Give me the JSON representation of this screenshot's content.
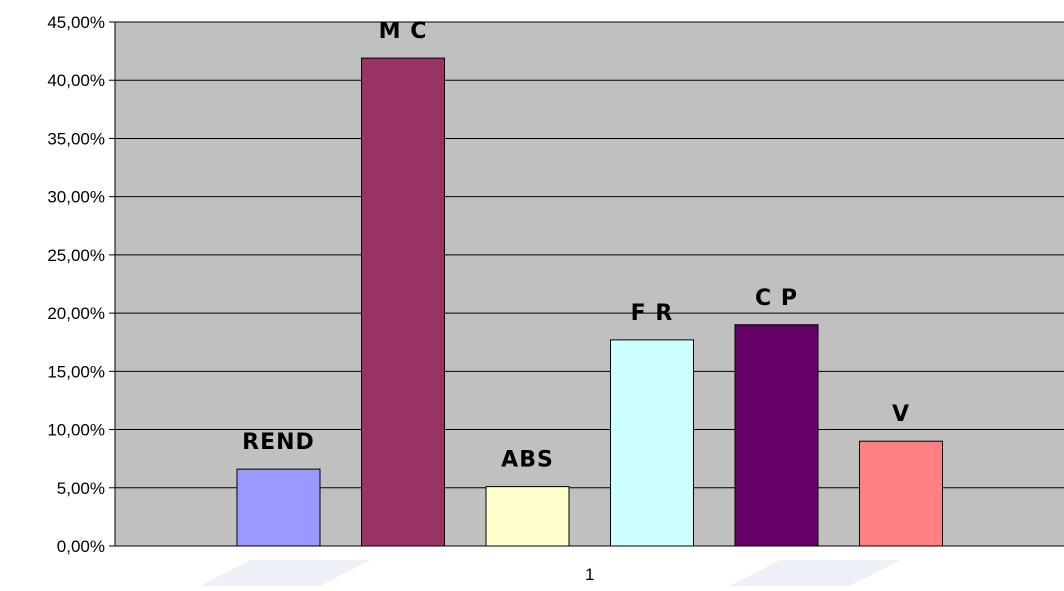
{
  "chart_data": {
    "type": "bar",
    "categories": [
      "1"
    ],
    "series": [
      {
        "label": "REND",
        "value": 6.6,
        "color": "#9999FF"
      },
      {
        "label": "M C",
        "value": 41.9,
        "color": "#993366"
      },
      {
        "label": "ABS",
        "value": 5.1,
        "color": "#FFFFCC"
      },
      {
        "label": "F R",
        "value": 17.7,
        "color": "#CCFFFF"
      },
      {
        "label": "C P",
        "value": 19.0,
        "color": "#660066"
      },
      {
        "label": "V",
        "value": 9.0,
        "color": "#FF8080"
      }
    ],
    "ylim": [
      0,
      45
    ],
    "yticks": [
      "0,00%",
      "5,00%",
      "10,00%",
      "15,00%",
      "20,00%",
      "25,00%",
      "30,00%",
      "35,00%",
      "40,00%",
      "45,00%"
    ],
    "grid": true,
    "plot_background": "#C0C0C0",
    "legend": "none"
  }
}
